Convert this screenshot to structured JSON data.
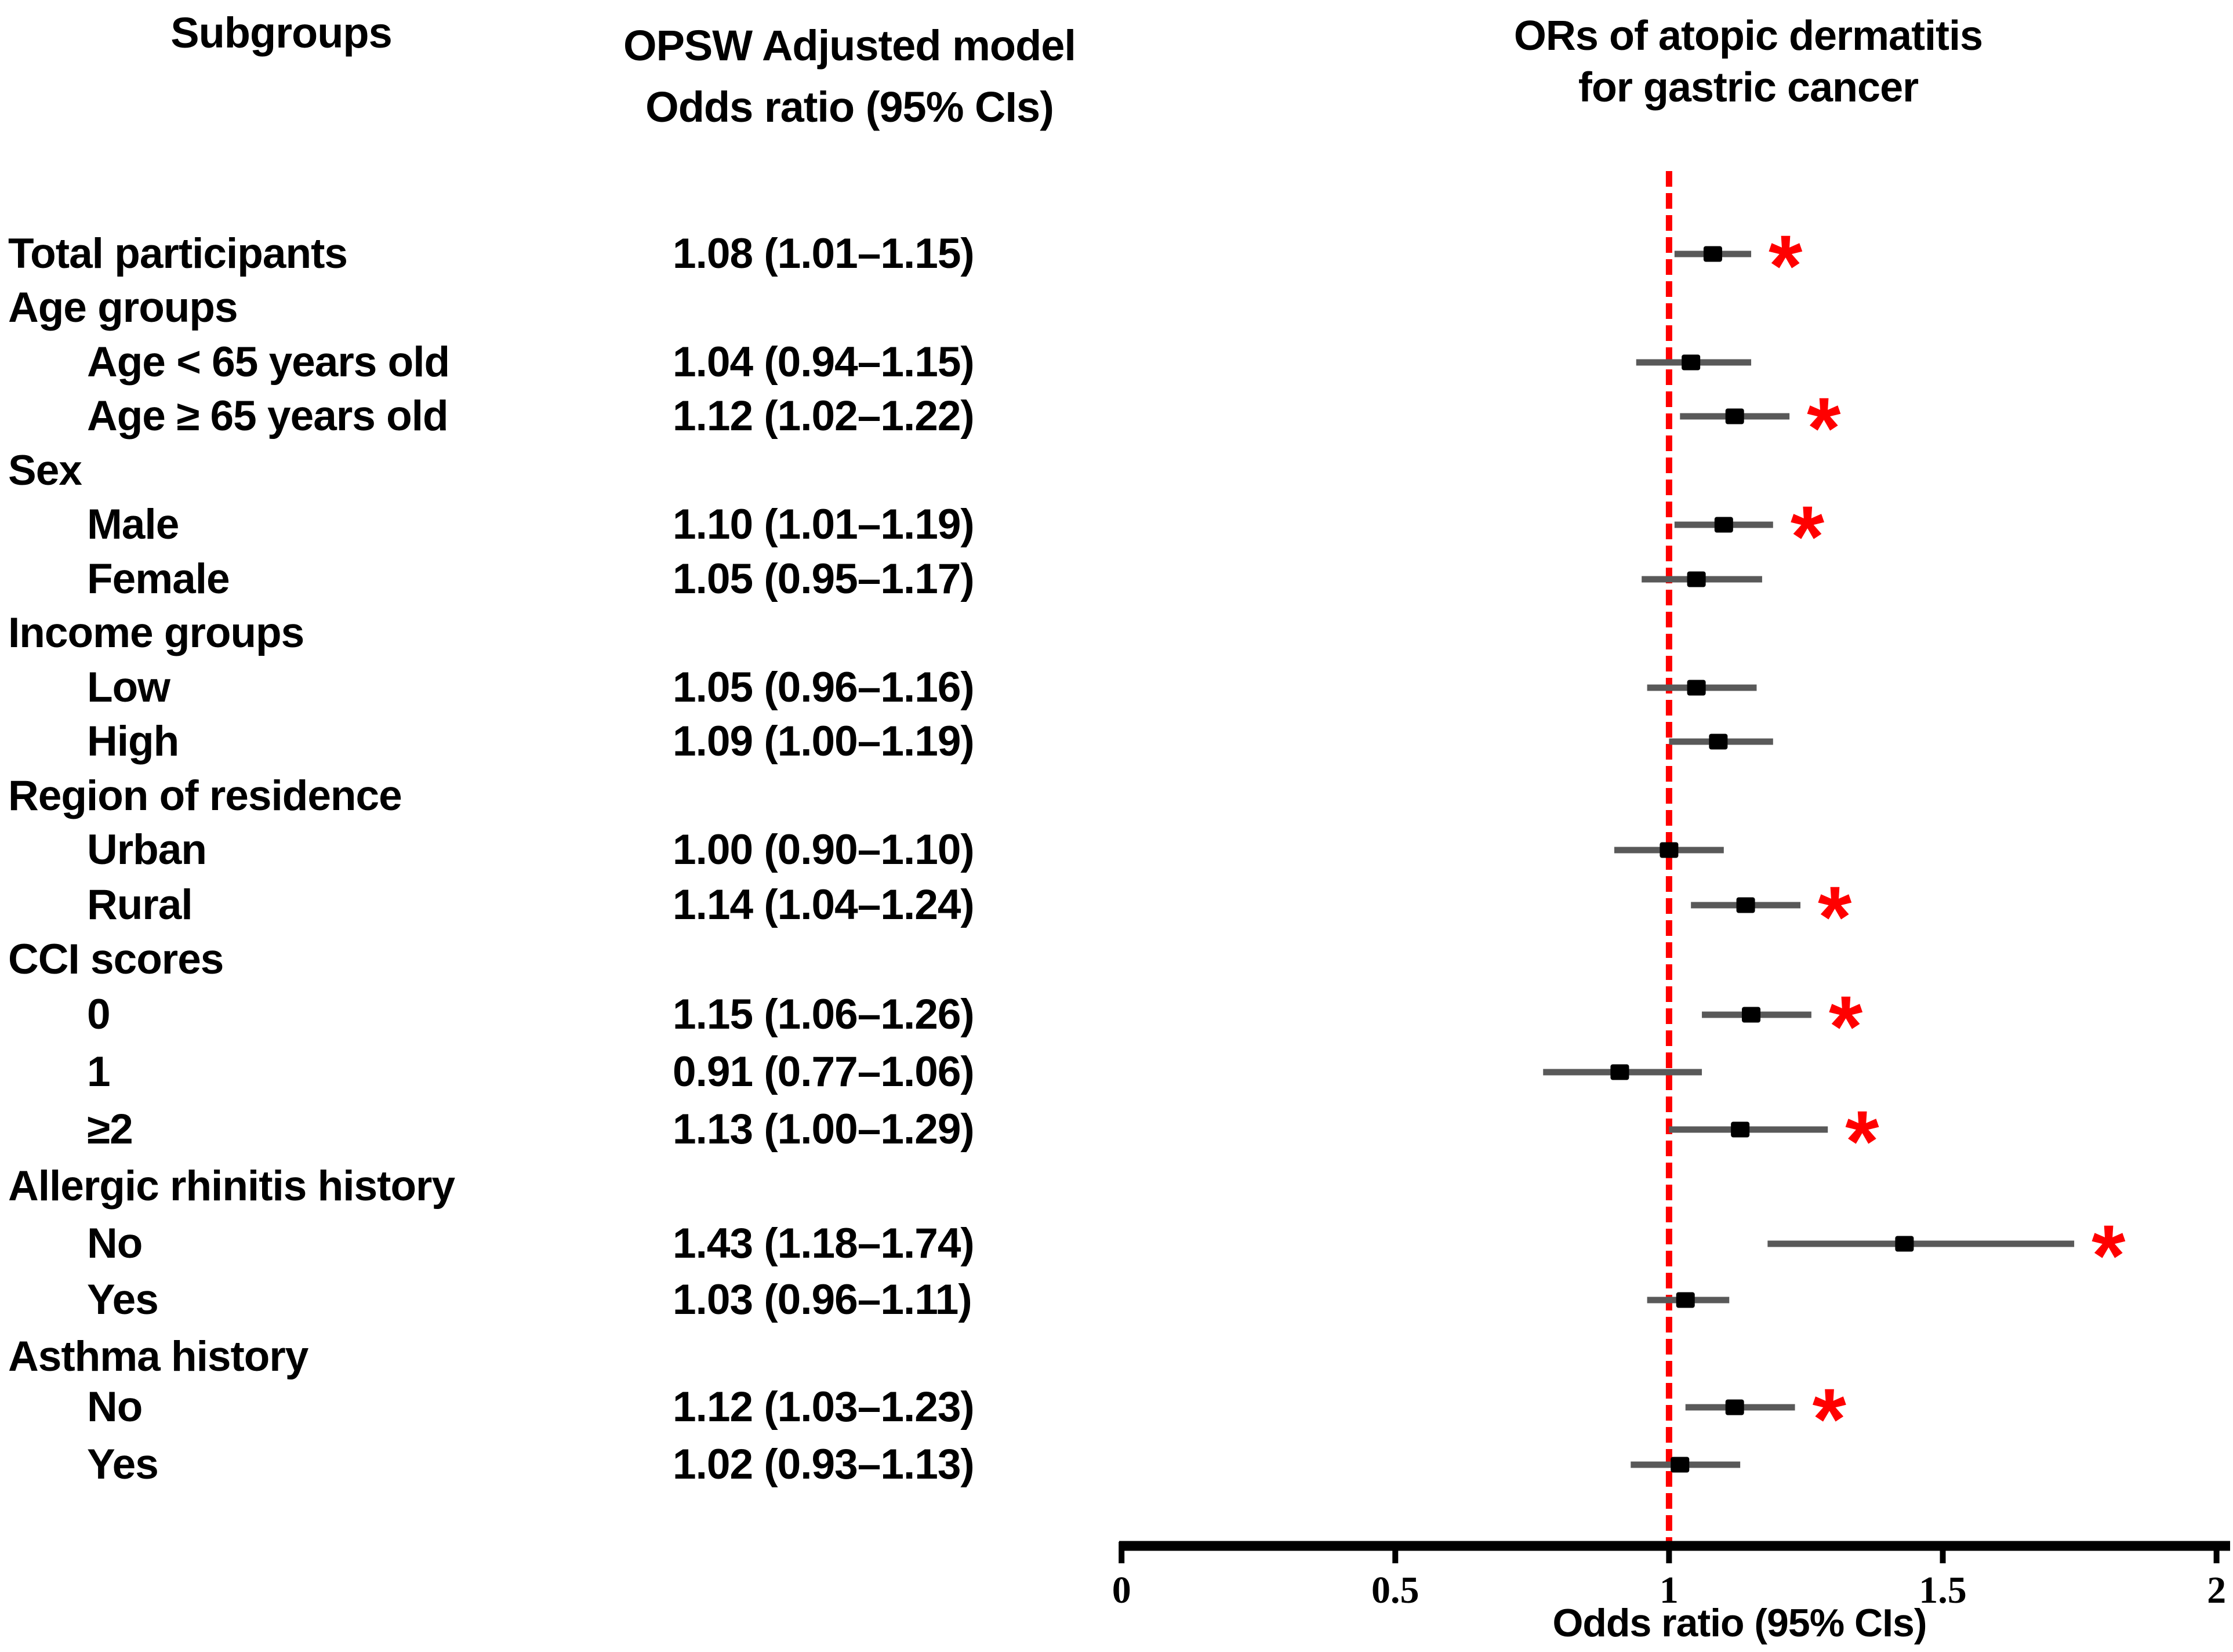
{
  "figure": {
    "columns": {
      "subgroups_header": "Subgroups",
      "model_header_line1": "OPSW Adjusted model",
      "model_header_line2": "Odds ratio (95% CIs)",
      "plot_title_line1": "ORs of atopic dermatitis",
      "plot_title_line2": "for gastric cancer"
    }
  },
  "style": {
    "marker_color": "#000000",
    "ci_color": "#595959",
    "ref_line_color": "#ff0000",
    "sig_color": "#ff0000",
    "axis_color": "#000000"
  },
  "chart_data": {
    "type": "forest",
    "title": "ORs of atopic dermatitis for gastric cancer",
    "xlabel": "Odds ratio (95% CIs)",
    "xlim": [
      0,
      2
    ],
    "x_ticks": [
      0,
      0.5,
      1,
      1.5,
      2
    ],
    "reference_line": 1.0,
    "grid": false,
    "rows": [
      {
        "label": "Total participants",
        "indent": 0,
        "header": false,
        "or_text": "1.08 (1.01–1.15)",
        "est": 1.08,
        "lo": 1.01,
        "hi": 1.15,
        "sig": true
      },
      {
        "label": "Age groups",
        "indent": 0,
        "header": true
      },
      {
        "label": "Age < 65 years old",
        "indent": 1,
        "header": false,
        "or_text": "1.04 (0.94–1.15)",
        "est": 1.04,
        "lo": 0.94,
        "hi": 1.15,
        "sig": false
      },
      {
        "label": "Age ≥ 65 years old",
        "indent": 1,
        "header": false,
        "or_text": "1.12 (1.02–1.22)",
        "est": 1.12,
        "lo": 1.02,
        "hi": 1.22,
        "sig": true
      },
      {
        "label": "Sex",
        "indent": 0,
        "header": true
      },
      {
        "label": "Male",
        "indent": 1,
        "header": false,
        "or_text": "1.10 (1.01–1.19)",
        "est": 1.1,
        "lo": 1.01,
        "hi": 1.19,
        "sig": true
      },
      {
        "label": "Female",
        "indent": 1,
        "header": false,
        "or_text": "1.05 (0.95–1.17)",
        "est": 1.05,
        "lo": 0.95,
        "hi": 1.17,
        "sig": false
      },
      {
        "label": "Income groups",
        "indent": 0,
        "header": true
      },
      {
        "label": "Low",
        "indent": 1,
        "header": false,
        "or_text": "1.05 (0.96–1.16)",
        "est": 1.05,
        "lo": 0.96,
        "hi": 1.16,
        "sig": false
      },
      {
        "label": "High",
        "indent": 1,
        "header": false,
        "or_text": "1.09 (1.00–1.19)",
        "est": 1.09,
        "lo": 1.0,
        "hi": 1.19,
        "sig": false
      },
      {
        "label": "Region of residence",
        "indent": 0,
        "header": true
      },
      {
        "label": "Urban",
        "indent": 1,
        "header": false,
        "or_text": "1.00 (0.90–1.10)",
        "est": 1.0,
        "lo": 0.9,
        "hi": 1.1,
        "sig": false
      },
      {
        "label": "Rural",
        "indent": 1,
        "header": false,
        "or_text": "1.14 (1.04–1.24)",
        "est": 1.14,
        "lo": 1.04,
        "hi": 1.24,
        "sig": true
      },
      {
        "label": "CCI scores",
        "indent": 0,
        "header": true
      },
      {
        "label": "0",
        "indent": 1,
        "header": false,
        "or_text": "1.15 (1.06–1.26)",
        "est": 1.15,
        "lo": 1.06,
        "hi": 1.26,
        "sig": true
      },
      {
        "label": "1",
        "indent": 1,
        "header": false,
        "or_text": "0.91 (0.77–1.06)",
        "est": 0.91,
        "lo": 0.77,
        "hi": 1.06,
        "sig": false
      },
      {
        "label": "≥2",
        "indent": 1,
        "header": false,
        "or_text": "1.13 (1.00–1.29)",
        "est": 1.13,
        "lo": 1.0,
        "hi": 1.29,
        "sig": true
      },
      {
        "label": "Allergic rhinitis history",
        "indent": 0,
        "header": true
      },
      {
        "label": "No",
        "indent": 1,
        "header": false,
        "or_text": "1.43 (1.18–1.74)",
        "est": 1.43,
        "lo": 1.18,
        "hi": 1.74,
        "sig": true
      },
      {
        "label": "Yes",
        "indent": 1,
        "header": false,
        "or_text": "1.03 (0.96–1.11)",
        "est": 1.03,
        "lo": 0.96,
        "hi": 1.11,
        "sig": false
      },
      {
        "label": "Asthma history",
        "indent": 0,
        "header": true
      },
      {
        "label": "No",
        "indent": 1,
        "header": false,
        "or_text": "1.12 (1.03–1.23)",
        "est": 1.12,
        "lo": 1.03,
        "hi": 1.23,
        "sig": true
      },
      {
        "label": "Yes",
        "indent": 1,
        "header": false,
        "or_text": "1.02 (0.93–1.13)",
        "est": 1.02,
        "lo": 0.93,
        "hi": 1.13,
        "sig": false
      }
    ]
  }
}
